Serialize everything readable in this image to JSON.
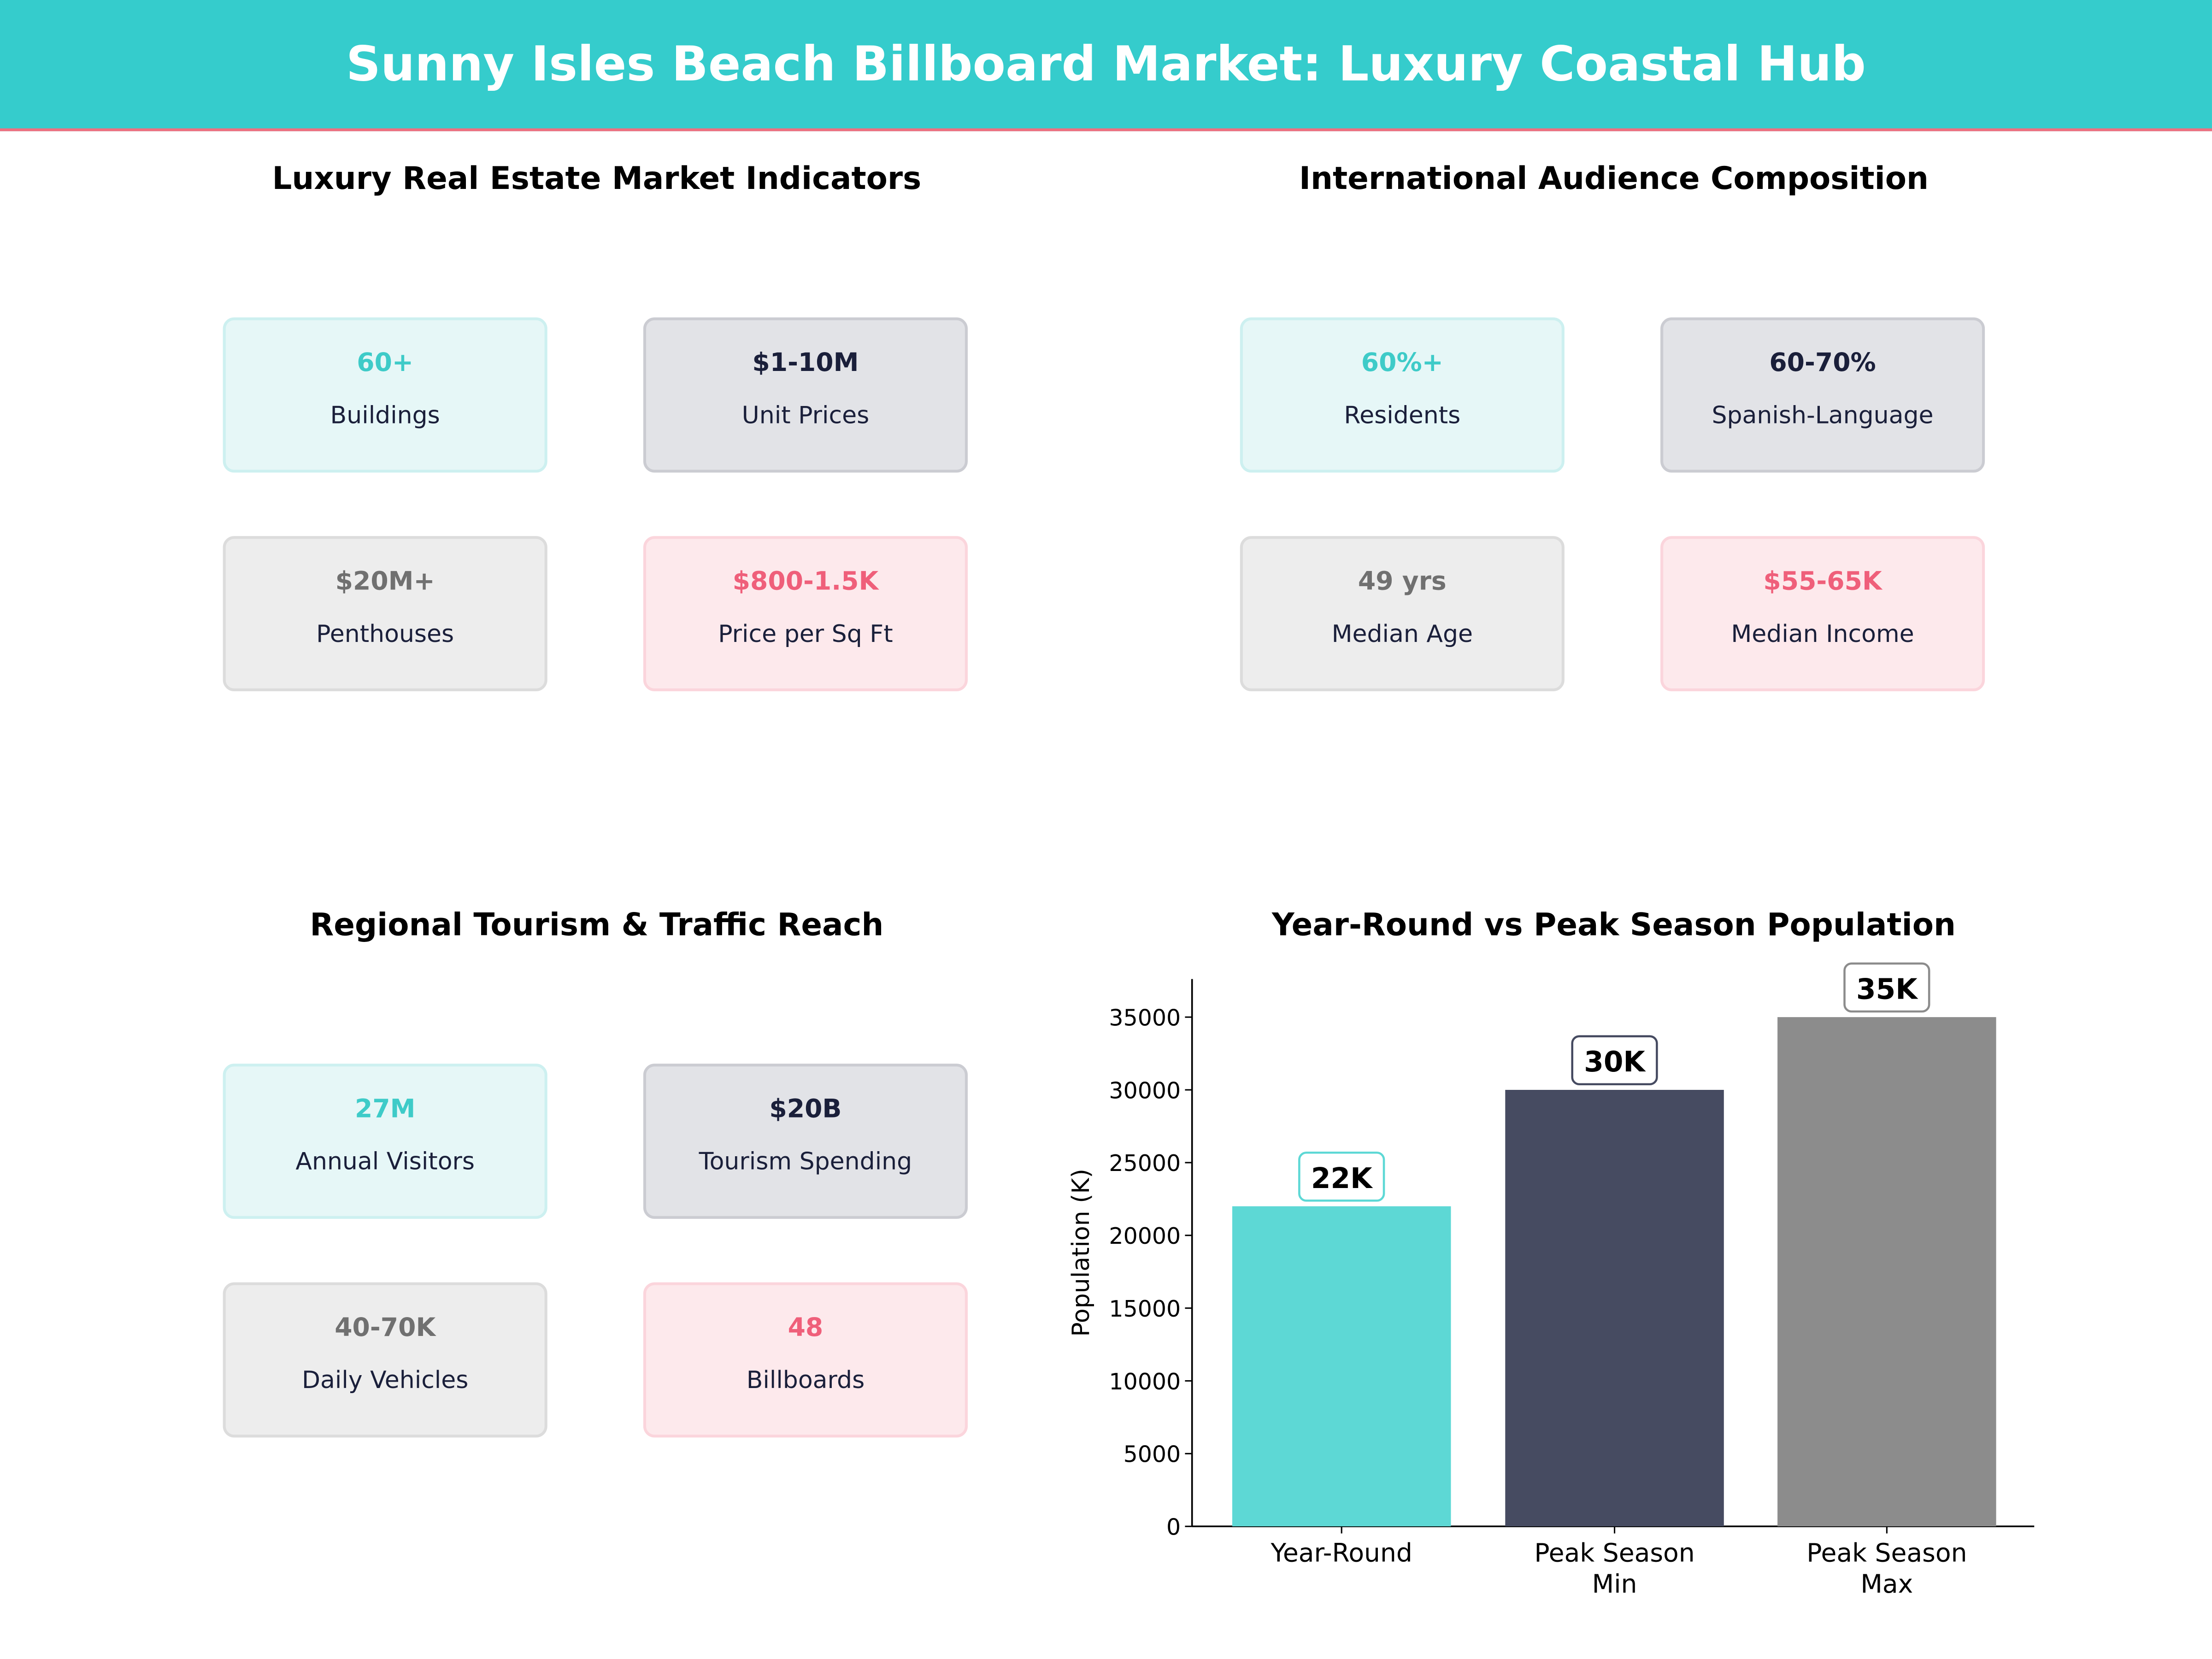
{
  "title": "Sunny Isles Beach Billboard Market: Luxury Coastal Hub",
  "colors": {
    "header": "#35cccc",
    "teal": "#3ecbc8",
    "navy": "#1a1f3a",
    "gray": "#707070",
    "pink": "#ef5f7a"
  },
  "panels": [
    {
      "title": "Luxury Real Estate Market Indicators",
      "cards": [
        {
          "value": "60+",
          "label": "Buildings",
          "style": "teal"
        },
        {
          "value": "$1-10M",
          "label": "Unit Prices",
          "style": "navy"
        },
        {
          "value": "$20M+",
          "label": "Penthouses",
          "style": "gray"
        },
        {
          "value": "$800-1.5K",
          "label": "Price per Sq Ft",
          "style": "pink"
        }
      ]
    },
    {
      "title": "International Audience Composition",
      "cards": [
        {
          "value": "60%+",
          "label": "Residents",
          "style": "teal"
        },
        {
          "value": "60-70%",
          "label": "Spanish-Language",
          "style": "navy"
        },
        {
          "value": "49 yrs",
          "label": "Median Age",
          "style": "gray"
        },
        {
          "value": "$55-65K",
          "label": "Median Income",
          "style": "pink"
        }
      ]
    },
    {
      "title": "Regional Tourism & Traffic Reach",
      "cards": [
        {
          "value": "27M",
          "label": "Annual Visitors",
          "style": "teal"
        },
        {
          "value": "$20B",
          "label": "Tourism Spending",
          "style": "navy"
        },
        {
          "value": "40-70K",
          "label": "Daily Vehicles",
          "style": "gray"
        },
        {
          "value": "48",
          "label": "Billboards",
          "style": "pink"
        }
      ]
    }
  ],
  "chart_data": {
    "type": "bar",
    "title": "Year-Round vs Peak Season Population",
    "ylabel": "Population (K)",
    "xlabel": "",
    "categories": [
      "Year-Round",
      "Peak Season\nMin",
      "Peak Season\nMax"
    ],
    "values": [
      22000,
      30000,
      35000
    ],
    "data_labels": [
      "22K",
      "30K",
      "35K"
    ],
    "bar_colors": [
      "#5dd8d5",
      "#464b61",
      "#8c8c8c"
    ],
    "label_border_colors": [
      "#5dd8d5",
      "#464b61",
      "#8c8c8c"
    ],
    "yticks": [
      0,
      5000,
      10000,
      15000,
      20000,
      25000,
      30000,
      35000
    ],
    "ylim": [
      0,
      37500
    ],
    "grid": false
  }
}
